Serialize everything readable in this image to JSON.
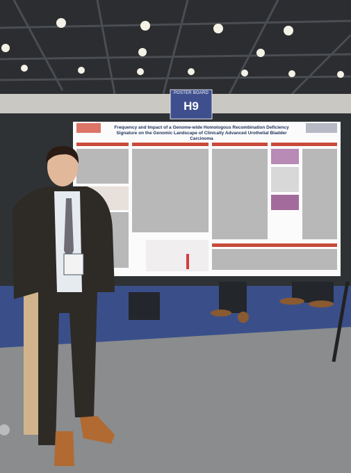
{
  "sign": {
    "label": "POSTER BOARD",
    "number": "H9"
  },
  "poster": {
    "title": "Frequency and Impact of a Genome-wide Homologous Recombination Deficiency Signature on the Genomic Landscape of Clinically Advanced Urothelial Bladder Carcinoma"
  }
}
